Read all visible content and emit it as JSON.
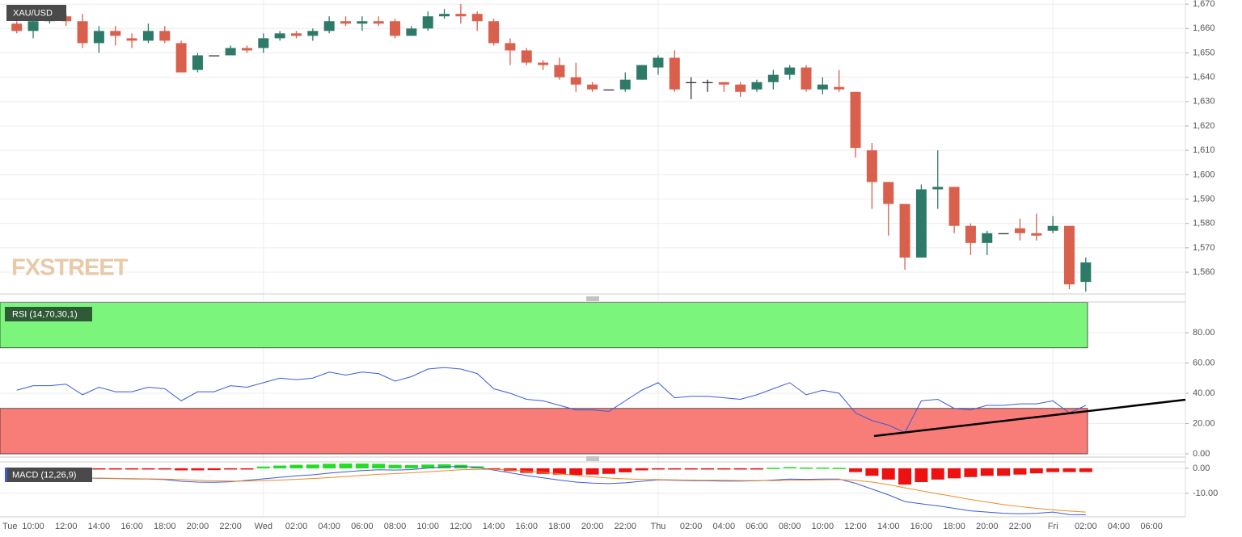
{
  "chart_data": [
    {
      "type": "candlestick",
      "title": "XAU/USD",
      "watermark": "FXSTREET",
      "categories": [
        "Tue",
        "10:00",
        null,
        "12:00",
        null,
        "14:00",
        null,
        "16:00",
        null,
        "18:00",
        null,
        "20:00",
        null,
        "22:00",
        null,
        "Wed",
        null,
        "02:00",
        null,
        "04:00",
        null,
        "06:00",
        null,
        "08:00",
        null,
        "10:00",
        null,
        "12:00",
        null,
        "14:00",
        null,
        "16:00",
        null,
        "18:00",
        null,
        "20:00",
        null,
        "22:00",
        null,
        "Thu",
        null,
        "02:00",
        null,
        "04:00",
        null,
        "06:00",
        null,
        "08:00",
        null,
        "10:00",
        null,
        "12:00",
        null,
        "14:00",
        null,
        "16:00",
        null,
        "18:00",
        null,
        "20:00",
        null,
        "22:00",
        null,
        "Fri",
        null,
        "02:00",
        null,
        "04:00",
        null,
        "06:00"
      ],
      "open": [
        1662,
        1659,
        1663,
        1665,
        1663,
        1654,
        1659,
        1656,
        1655,
        1659,
        1654,
        1643,
        1649,
        1649,
        1652,
        1652,
        1656,
        1658,
        1657,
        1659,
        1663,
        1662,
        1663,
        1663,
        1657,
        1660,
        1665,
        1666,
        1666,
        1663,
        1654,
        1651,
        1646,
        1645,
        1640,
        1637,
        1635,
        1635,
        1639,
        1644,
        1648,
        1638,
        1638,
        1638,
        1637,
        1635,
        1638,
        1641,
        1644,
        1635,
        1636,
        1634,
        1610,
        1597,
        1588,
        1566,
        1594,
        1595,
        1579,
        1572,
        1576,
        1578,
        1576,
        1577,
        1579,
        1556,
        null,
        null,
        null,
        null
      ],
      "high": [
        1663,
        1664,
        1665,
        1666,
        1666,
        1661,
        1661,
        1658,
        1662,
        1661,
        1655,
        1650,
        1649,
        1653,
        1653,
        1658,
        1659,
        1659,
        1660,
        1665,
        1665,
        1665,
        1665,
        1664,
        1661,
        1667,
        1668,
        1670,
        1667,
        1664,
        1656,
        1652,
        1647,
        1648,
        1646,
        1638,
        1635,
        1642,
        1645,
        1649,
        1651,
        1640,
        1639,
        1638,
        1638,
        1639,
        1643,
        1645,
        1645,
        1640,
        1643,
        1634,
        1613,
        1597,
        1588,
        1596,
        1610,
        1595,
        1580,
        1577,
        1576,
        1582,
        1584,
        1583,
        1579,
        1566,
        null,
        null,
        null,
        null
      ],
      "low": [
        1658,
        1656,
        1662,
        1661,
        1652,
        1650,
        1653,
        1652,
        1654,
        1654,
        1642,
        1642,
        1649,
        1649,
        1650,
        1650,
        1655,
        1656,
        1655,
        1658,
        1661,
        1659,
        1661,
        1656,
        1657,
        1659,
        1664,
        1662,
        1659,
        1653,
        1645,
        1645,
        1643,
        1639,
        1634,
        1634,
        1635,
        1634,
        1639,
        1641,
        1634,
        1631,
        1634,
        1634,
        1632,
        1634,
        1635,
        1639,
        1634,
        1633,
        1634,
        1607,
        1586,
        1575,
        1561,
        1566,
        1586,
        1576,
        1567,
        1567,
        1576,
        1573,
        1573,
        1576,
        1553,
        1552,
        null,
        null,
        null,
        null
      ],
      "close": [
        1659,
        1663,
        1664,
        1663,
        1654,
        1659,
        1657,
        1655,
        1659,
        1655,
        1642,
        1649,
        1649,
        1652,
        1651,
        1656,
        1658,
        1657,
        1659,
        1663,
        1662,
        1663,
        1662,
        1657,
        1660,
        1665,
        1666,
        1665,
        1663,
        1654,
        1651,
        1646,
        1645,
        1640,
        1637,
        1635,
        1635,
        1639,
        1645,
        1648,
        1635,
        1638,
        1638,
        1637,
        1634,
        1638,
        1641,
        1644,
        1635,
        1637,
        1635,
        1611,
        1597,
        1588,
        1566,
        1594,
        1595,
        1579,
        1572,
        1576,
        1576,
        1576,
        1575,
        1579,
        1555,
        1564,
        null,
        null,
        null,
        null
      ],
      "up_color": "#2e7a68",
      "down_color": "#d9604c",
      "ylim": [
        1551.4,
        1671.7
      ],
      "yticks": [
        {
          "value": 1560,
          "label": "1,560"
        },
        {
          "value": 1570,
          "label": "1,570"
        },
        {
          "value": 1580,
          "label": "1,580"
        },
        {
          "value": 1590,
          "label": "1,590"
        },
        {
          "value": 1600,
          "label": "1,600"
        },
        {
          "value": 1610,
          "label": "1,610"
        },
        {
          "value": 1620,
          "label": "1,620"
        },
        {
          "value": 1630,
          "label": "1,630"
        },
        {
          "value": 1640,
          "label": "1,640"
        },
        {
          "value": 1650,
          "label": "1,650"
        },
        {
          "value": 1660,
          "label": "1,660"
        },
        {
          "value": 1670,
          "label": "1,670"
        }
      ],
      "grid": true
    },
    {
      "type": "line",
      "title": "RSI (14,70,30,1)",
      "color": "#3b5bdb",
      "values": [
        42,
        45,
        45,
        46,
        39,
        44,
        41,
        41,
        44,
        43,
        35,
        41,
        41,
        45,
        44,
        47,
        50,
        49,
        50,
        54,
        52,
        54,
        53,
        48,
        51,
        56,
        57,
        56,
        53,
        43,
        40,
        36,
        35,
        32,
        29,
        29,
        28,
        35,
        42,
        47,
        37,
        38,
        38,
        37,
        36,
        39,
        43,
        47,
        39,
        42,
        40,
        27,
        22,
        19,
        14,
        35,
        36,
        30,
        29,
        32,
        32,
        33,
        33,
        35,
        27,
        32
      ],
      "bands": [
        {
          "from": 70,
          "to": 100,
          "color": "#7cf57c"
        },
        {
          "from": 0,
          "to": 30,
          "color": "#f87c78"
        }
      ],
      "ylim": [
        0,
        100
      ],
      "yticks": [
        {
          "value": 0,
          "label": "0.00"
        },
        {
          "value": 20,
          "label": "20.00"
        },
        {
          "value": 40,
          "label": "40.00"
        },
        {
          "value": 60,
          "label": "60.00"
        },
        {
          "value": 80,
          "label": "80.00"
        }
      ],
      "grid": true
    },
    {
      "type": "macd",
      "title": "MACD (12,26,9)",
      "series": [
        {
          "color": "#3b5bdb",
          "values": [
            -3.2,
            -3.3,
            -3.3,
            -3.4,
            -3.8,
            -4.0,
            -4.1,
            -4.2,
            -4.3,
            -4.5,
            -5.2,
            -5.5,
            -5.6,
            -5.4,
            -4.8,
            -4.2,
            -3.6,
            -3.0,
            -2.6,
            -1.9,
            -1.4,
            -0.9,
            -0.6,
            -0.7,
            -0.5,
            0.1,
            0.6,
            0.8,
            0.4,
            -0.7,
            -1.8,
            -2.9,
            -3.8,
            -4.7,
            -5.5,
            -5.9,
            -6.1,
            -5.8,
            -5.2,
            -4.6,
            -4.8,
            -4.9,
            -5.0,
            -5.1,
            -5.1,
            -5.0,
            -4.7,
            -4.3,
            -4.4,
            -4.3,
            -4.3,
            -6.0,
            -8.3,
            -10.6,
            -13.3,
            -14.2,
            -15.0,
            -16.0,
            -17.0,
            -17.5,
            -18.0,
            -18.2,
            -18.0,
            -17.5,
            -18.5,
            -18.6
          ]
        },
        {
          "color": "#f08a24",
          "values": [
            -3.5,
            -3.6,
            -3.7,
            -3.7,
            -3.8,
            -3.9,
            -4.0,
            -4.1,
            -4.2,
            -4.3,
            -4.5,
            -4.8,
            -5.0,
            -5.1,
            -5.1,
            -4.9,
            -4.7,
            -4.4,
            -4.1,
            -3.7,
            -3.3,
            -2.8,
            -2.4,
            -2.1,
            -1.8,
            -1.4,
            -1.0,
            -0.6,
            -0.4,
            -0.4,
            -0.7,
            -1.1,
            -1.6,
            -2.2,
            -2.8,
            -3.4,
            -3.9,
            -4.2,
            -4.4,
            -4.5,
            -4.6,
            -4.7,
            -4.8,
            -4.8,
            -4.9,
            -4.9,
            -4.9,
            -4.8,
            -4.7,
            -4.6,
            -4.5,
            -4.8,
            -5.5,
            -6.5,
            -7.8,
            -9.0,
            -10.2,
            -11.3,
            -12.5,
            -13.5,
            -14.5,
            -15.3,
            -16.0,
            -16.6,
            -17.1,
            -17.5
          ]
        }
      ],
      "histogram": {
        "up_color": "#22dd22",
        "down_color": "#ee1111",
        "values": [
          -0.3,
          -0.3,
          -0.3,
          -0.3,
          -0.3,
          -0.4,
          -0.4,
          -0.3,
          -0.3,
          -0.4,
          -0.8,
          -0.8,
          -0.7,
          -0.4,
          -0.2,
          0.7,
          1.1,
          1.4,
          1.5,
          1.8,
          1.9,
          1.9,
          1.8,
          1.4,
          1.3,
          1.5,
          1.6,
          1.4,
          0.8,
          -0.3,
          -1.1,
          -1.8,
          -2.2,
          -2.5,
          -2.7,
          -2.5,
          -2.2,
          -1.6,
          -0.8,
          -0.1,
          -0.2,
          -0.2,
          -0.2,
          -0.3,
          -0.2,
          -0.1,
          0.2,
          0.5,
          0.3,
          0.3,
          0.2,
          -1.5,
          -3.0,
          -4.5,
          -6.5,
          -5.5,
          -4.5,
          -4.0,
          -3.5,
          -3.0,
          -3.0,
          -2.5,
          -2.0,
          -1.5,
          -1.5,
          -1.5
        ]
      },
      "ylim": [
        -19.4,
        1.6
      ],
      "yticks": [
        {
          "value": 0,
          "label": "0.00"
        },
        {
          "value": -10,
          "label": "-10.00"
        }
      ],
      "grid": true
    }
  ]
}
